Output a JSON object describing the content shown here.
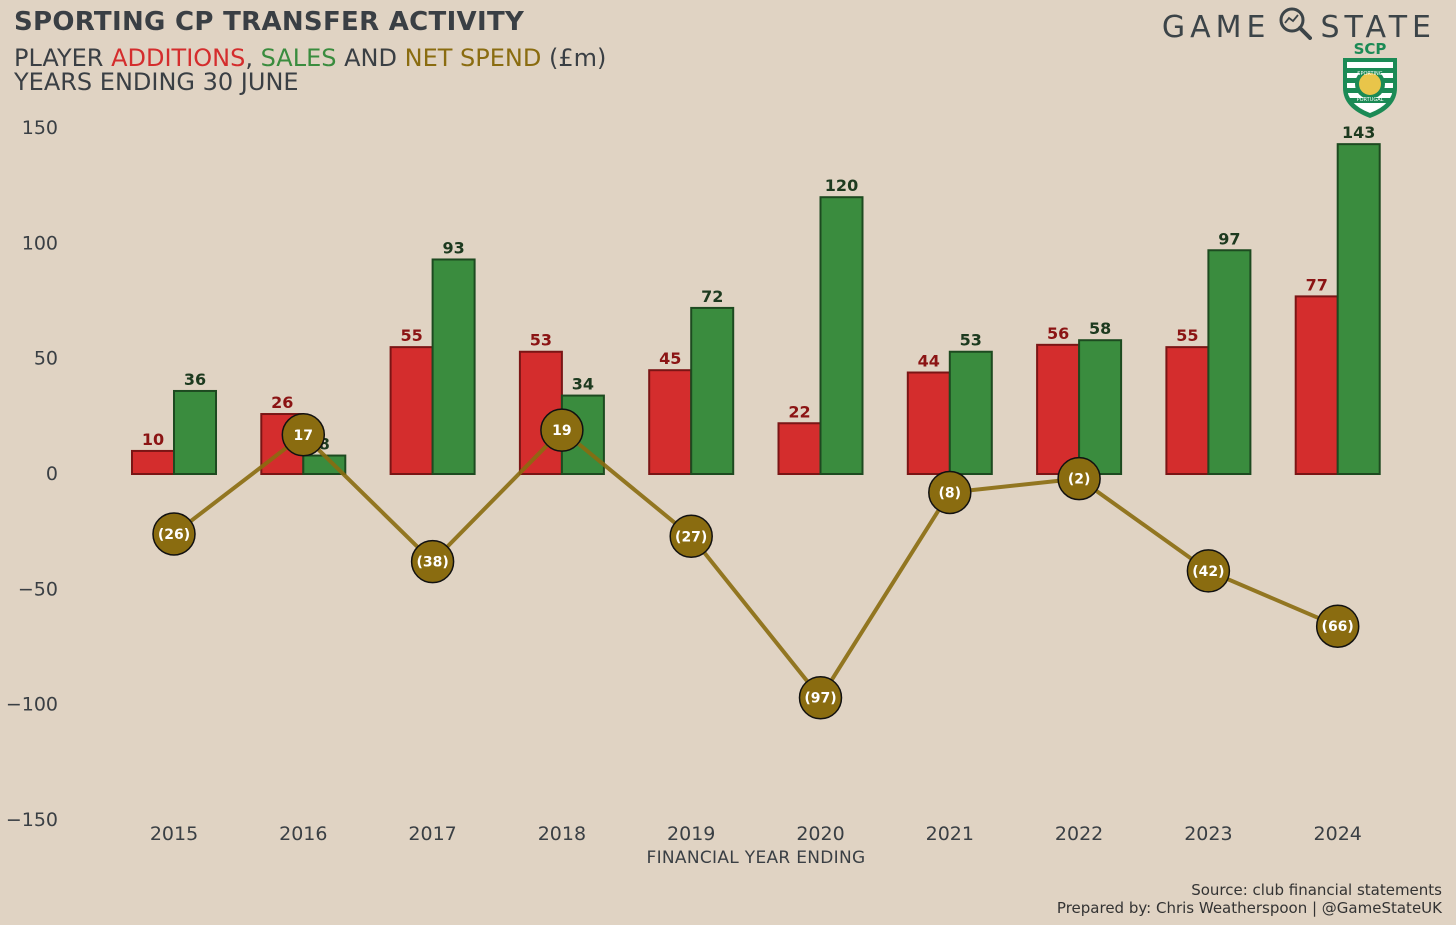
{
  "header": {
    "title": "SPORTING CP TRANSFER ACTIVITY",
    "subtitle_parts": [
      {
        "text": "PLAYER ",
        "color": "#3a3f44"
      },
      {
        "text": "ADDITIONS",
        "color": "#d42d2d"
      },
      {
        "text": ", ",
        "color": "#3a3f44"
      },
      {
        "text": "SALES",
        "color": "#3a8c3e"
      },
      {
        "text": " AND ",
        "color": "#3a3f44"
      },
      {
        "text": "NET SPEND",
        "color": "#8a6c10"
      },
      {
        "text": " (£m)",
        "color": "#3a3f44"
      }
    ],
    "subtitle2": "YEARS ENDING 30 JUNE"
  },
  "brand": {
    "left": "GAME",
    "right": "STATE",
    "icon": "magnifier-icon",
    "crest_text": "SCP",
    "crest_ring_text": "SPORTING",
    "crest_bottom_text": "PORTUGAL"
  },
  "footer": {
    "source": "Source: club financial statements",
    "credit": "Prepared by: Chris Weatherspoon | @GameStateUK"
  },
  "colors": {
    "additions": "#d42d2d",
    "sales": "#3a8c3e",
    "net": "#8a6c10",
    "background": "#e0d3c3"
  },
  "chart_data": {
    "type": "bar",
    "categories": [
      "2015",
      "2016",
      "2017",
      "2018",
      "2019",
      "2020",
      "2021",
      "2022",
      "2023",
      "2024"
    ],
    "series": [
      {
        "name": "ADDITIONS",
        "type": "bar",
        "values": [
          10,
          26,
          55,
          53,
          45,
          22,
          44,
          56,
          55,
          77
        ]
      },
      {
        "name": "SALES",
        "type": "bar",
        "values": [
          36,
          8,
          93,
          34,
          72,
          120,
          53,
          58,
          97,
          143
        ]
      },
      {
        "name": "NET SPEND",
        "type": "line",
        "values": [
          -26,
          17,
          -38,
          19,
          -27,
          -97,
          -8,
          -2,
          -42,
          -66
        ],
        "labels": [
          "(26)",
          "17",
          "(38)",
          "19",
          "(27)",
          "(97)",
          "(8)",
          "(2)",
          "(42)",
          "(66)"
        ]
      }
    ],
    "xlabel": "FINANCIAL YEAR ENDING",
    "ylabel": "",
    "ylim": [
      -150,
      150
    ],
    "yticks": [
      150,
      100,
      50,
      0,
      -50,
      -100,
      -150
    ],
    "ytick_labels": [
      "150",
      "100",
      "50",
      "0",
      "−50",
      "−100",
      "−150"
    ],
    "grid": false
  }
}
